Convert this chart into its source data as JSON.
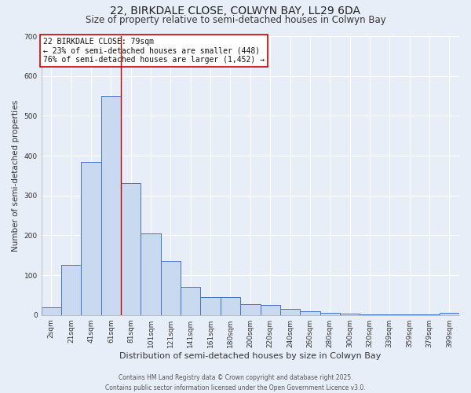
{
  "title": "22, BIRKDALE CLOSE, COLWYN BAY, LL29 6DA",
  "subtitle": "Size of property relative to semi-detached houses in Colwyn Bay",
  "xlabel": "Distribution of semi-detached houses by size in Colwyn Bay",
  "ylabel": "Number of semi-detached properties",
  "bar_labels": [
    "2sqm",
    "21sqm",
    "41sqm",
    "61sqm",
    "81sqm",
    "101sqm",
    "121sqm",
    "141sqm",
    "161sqm",
    "180sqm",
    "200sqm",
    "220sqm",
    "240sqm",
    "260sqm",
    "280sqm",
    "300sqm",
    "320sqm",
    "339sqm",
    "359sqm",
    "379sqm",
    "399sqm"
  ],
  "bar_values": [
    20,
    125,
    385,
    550,
    330,
    205,
    135,
    70,
    45,
    45,
    28,
    25,
    15,
    10,
    5,
    3,
    2,
    2,
    2,
    2,
    5
  ],
  "bar_color": "#c9d9ef",
  "bar_edge_color": "#4472c4",
  "background_color": "#e8eef7",
  "grid_color": "#ffffff",
  "vline_x_idx": 3,
  "vline_color": "#cc0000",
  "annotation_title": "22 BIRKDALE CLOSE: 79sqm",
  "annotation_line1": "← 23% of semi-detached houses are smaller (448)",
  "annotation_line2": "76% of semi-detached houses are larger (1,452) →",
  "annotation_box_color": "#ffffff",
  "annotation_box_edge": "#cc0000",
  "footer_line1": "Contains HM Land Registry data © Crown copyright and database right 2025.",
  "footer_line2": "Contains public sector information licensed under the Open Government Licence v3.0.",
  "ylim": [
    0,
    700
  ],
  "yticks": [
    0,
    100,
    200,
    300,
    400,
    500,
    600,
    700
  ],
  "title_fontsize": 10,
  "subtitle_fontsize": 8.5,
  "xlabel_fontsize": 8,
  "ylabel_fontsize": 7.5,
  "tick_fontsize": 6.5,
  "annotation_fontsize": 7,
  "footer_fontsize": 5.5
}
